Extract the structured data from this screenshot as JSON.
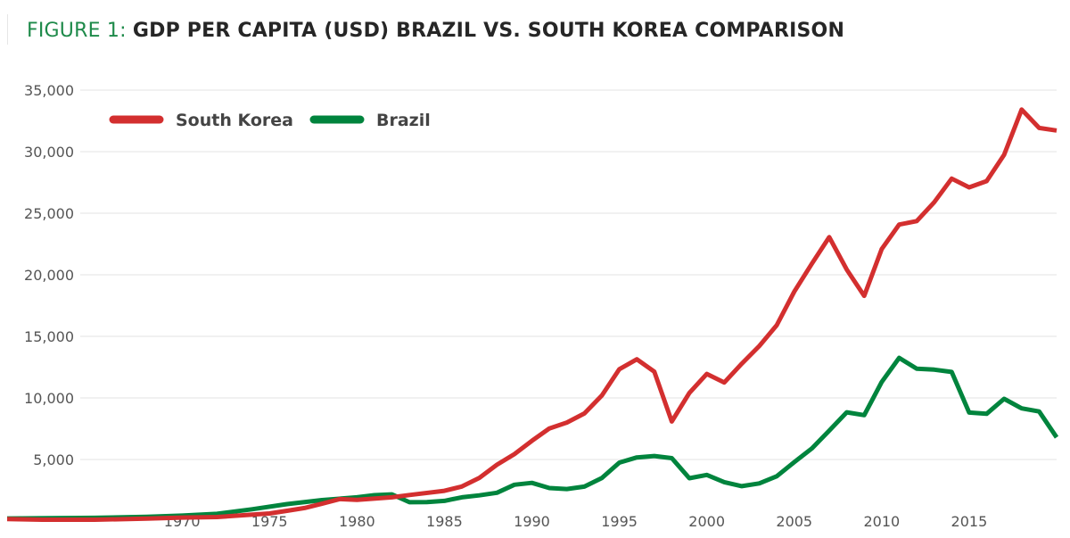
{
  "title": {
    "prefix": "FIGURE 1:",
    "main": "GDP PER CAPITA (USD) BRAZIL VS. SOUTH KOREA COMPARISON"
  },
  "chart_data": {
    "type": "line",
    "title": "FIGURE 1: GDP PER CAPITA (USD) BRAZIL VS. SOUTH KOREA COMPARISON",
    "xlabel": "",
    "ylabel": "",
    "xlim": [
      1960,
      2020
    ],
    "ylim": [
      0,
      35000
    ],
    "x_ticks": [
      1970,
      1975,
      1980,
      1985,
      1990,
      1995,
      2000,
      2005,
      2010,
      2015
    ],
    "y_ticks": [
      5000,
      10000,
      15000,
      20000,
      25000,
      30000,
      35000
    ],
    "y_tick_labels": [
      "5,000",
      "10,000",
      "15,000",
      "20,000",
      "25,000",
      "30,000",
      "35,000"
    ],
    "grid": "horizontal",
    "legend_position": "top-left",
    "series": [
      {
        "name": "South Korea",
        "color": "#d32f2f",
        "points": [
          [
            1960,
            158
          ],
          [
            1962,
            106
          ],
          [
            1965,
            108
          ],
          [
            1968,
            198
          ],
          [
            1970,
            279
          ],
          [
            1972,
            323
          ],
          [
            1975,
            617
          ],
          [
            1976,
            834
          ],
          [
            1977,
            1055
          ],
          [
            1978,
            1405
          ],
          [
            1979,
            1784
          ],
          [
            1980,
            1715
          ],
          [
            1982,
            1928
          ],
          [
            1983,
            2119
          ],
          [
            1985,
            2457
          ],
          [
            1986,
            2803
          ],
          [
            1987,
            3510
          ],
          [
            1988,
            4571
          ],
          [
            1989,
            5438
          ],
          [
            1990,
            6516
          ],
          [
            1991,
            7523
          ],
          [
            1992,
            8002
          ],
          [
            1993,
            8741
          ],
          [
            1994,
            10206
          ],
          [
            1995,
            12333
          ],
          [
            1996,
            13138
          ],
          [
            1997,
            12131
          ],
          [
            1998,
            8085
          ],
          [
            1999,
            10409
          ],
          [
            2000,
            11948
          ],
          [
            2001,
            11253
          ],
          [
            2002,
            12783
          ],
          [
            2003,
            14209
          ],
          [
            2004,
            15908
          ],
          [
            2005,
            18640
          ],
          [
            2006,
            20888
          ],
          [
            2007,
            23061
          ],
          [
            2008,
            20430
          ],
          [
            2009,
            18291
          ],
          [
            2010,
            22087
          ],
          [
            2011,
            24080
          ],
          [
            2012,
            24359
          ],
          [
            2013,
            25890
          ],
          [
            2014,
            27811
          ],
          [
            2015,
            27105
          ],
          [
            2016,
            27608
          ],
          [
            2017,
            29743
          ],
          [
            2018,
            33423
          ],
          [
            2019,
            31929
          ],
          [
            2020,
            31721
          ]
        ]
      },
      {
        "name": "Brazil",
        "color": "#00843d",
        "points": [
          [
            1960,
            210
          ],
          [
            1965,
            262
          ],
          [
            1968,
            350
          ],
          [
            1970,
            440
          ],
          [
            1972,
            590
          ],
          [
            1974,
            960
          ],
          [
            1976,
            1380
          ],
          [
            1978,
            1700
          ],
          [
            1980,
            1930
          ],
          [
            1981,
            2100
          ],
          [
            1982,
            2170
          ],
          [
            1983,
            1530
          ],
          [
            1984,
            1540
          ],
          [
            1985,
            1640
          ],
          [
            1986,
            1930
          ],
          [
            1987,
            2090
          ],
          [
            1988,
            2300
          ],
          [
            1989,
            2950
          ],
          [
            1990,
            3100
          ],
          [
            1991,
            2680
          ],
          [
            1992,
            2600
          ],
          [
            1993,
            2800
          ],
          [
            1994,
            3500
          ],
          [
            1995,
            4750
          ],
          [
            1996,
            5170
          ],
          [
            1997,
            5280
          ],
          [
            1998,
            5110
          ],
          [
            1999,
            3480
          ],
          [
            2000,
            3750
          ],
          [
            2001,
            3160
          ],
          [
            2002,
            2830
          ],
          [
            2003,
            3060
          ],
          [
            2004,
            3640
          ],
          [
            2005,
            4790
          ],
          [
            2006,
            5890
          ],
          [
            2007,
            7350
          ],
          [
            2008,
            8830
          ],
          [
            2009,
            8600
          ],
          [
            2010,
            11290
          ],
          [
            2011,
            13250
          ],
          [
            2012,
            12370
          ],
          [
            2013,
            12300
          ],
          [
            2014,
            12110
          ],
          [
            2015,
            8810
          ],
          [
            2016,
            8710
          ],
          [
            2017,
            9930
          ],
          [
            2018,
            9150
          ],
          [
            2019,
            8900
          ],
          [
            2020,
            6800
          ]
        ]
      }
    ]
  }
}
